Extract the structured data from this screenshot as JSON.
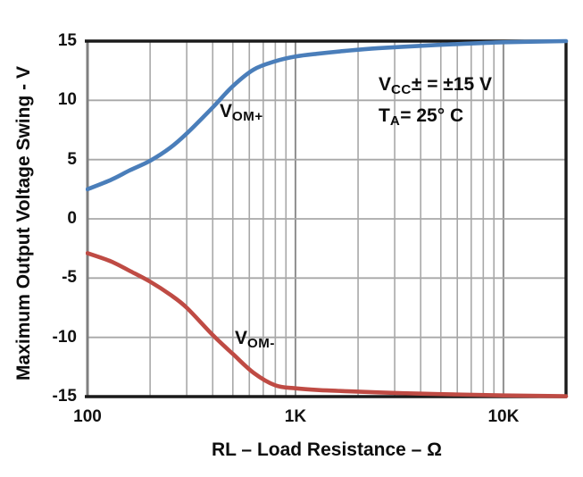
{
  "chart_data": {
    "type": "line",
    "title": "",
    "xlabel": "RL – Load Resistance – Ω",
    "ylabel": "Maximum Output Voltage Swing - V",
    "x_scale": "log",
    "xlim": [
      100,
      20000
    ],
    "ylim": [
      -15,
      15
    ],
    "grid": true,
    "x_ticks": [
      {
        "v": 100,
        "label": "100"
      },
      {
        "v": 1000,
        "label": "1K"
      },
      {
        "v": 10000,
        "label": "10K"
      }
    ],
    "y_ticks": [
      {
        "v": 15,
        "label": "15"
      },
      {
        "v": 10,
        "label": "10"
      },
      {
        "v": 5,
        "label": "5"
      },
      {
        "v": 0,
        "label": "0"
      },
      {
        "v": -5,
        "label": "-5"
      },
      {
        "v": -10,
        "label": "-10"
      },
      {
        "v": -15,
        "label": "-15"
      }
    ],
    "x_gridlines_minor": [
      200,
      300,
      400,
      500,
      600,
      700,
      800,
      900,
      2000,
      3000,
      4000,
      5000,
      6000,
      7000,
      8000,
      9000
    ],
    "x_gridlines_major": [
      1000,
      10000
    ],
    "y_gridlines": [
      10,
      5,
      0,
      -5,
      -10
    ],
    "series": [
      {
        "name": "VOM+",
        "label_main": "V",
        "label_sub": "OM+",
        "color": "#4a7eba",
        "points": [
          [
            100,
            2.5
          ],
          [
            130,
            3.3
          ],
          [
            160,
            4.1
          ],
          [
            200,
            4.9
          ],
          [
            250,
            6.0
          ],
          [
            300,
            7.2
          ],
          [
            400,
            9.4
          ],
          [
            500,
            11.2
          ],
          [
            630,
            12.6
          ],
          [
            800,
            13.3
          ],
          [
            1000,
            13.7
          ],
          [
            1300,
            13.95
          ],
          [
            1800,
            14.2
          ],
          [
            2500,
            14.4
          ],
          [
            4000,
            14.6
          ],
          [
            6000,
            14.75
          ],
          [
            10000,
            14.9
          ],
          [
            20000,
            15.0
          ]
        ]
      },
      {
        "name": "VOM-",
        "label_main": "V",
        "label_sub": "OM-",
        "color": "#bf4b44",
        "points": [
          [
            100,
            -2.9
          ],
          [
            130,
            -3.6
          ],
          [
            160,
            -4.4
          ],
          [
            200,
            -5.3
          ],
          [
            250,
            -6.4
          ],
          [
            300,
            -7.5
          ],
          [
            400,
            -9.8
          ],
          [
            500,
            -11.4
          ],
          [
            630,
            -13.0
          ],
          [
            800,
            -14.05
          ],
          [
            1000,
            -14.3
          ],
          [
            1300,
            -14.45
          ],
          [
            1800,
            -14.55
          ],
          [
            2500,
            -14.65
          ],
          [
            4000,
            -14.75
          ],
          [
            6000,
            -14.82
          ],
          [
            10000,
            -14.9
          ],
          [
            20000,
            -14.97
          ]
        ]
      }
    ],
    "annotations": [
      {
        "main": "V",
        "sub": "CC",
        "rest": "± = ±15 V"
      },
      {
        "main": "T",
        "sub": "A",
        "rest": "= 25° C"
      }
    ],
    "colors": {
      "grid": "#a8a8a8",
      "grid_major": "#8f8f8f",
      "frame": "#1a1a1a",
      "axis_left": "#7f7f7f",
      "text": "#111111"
    }
  }
}
